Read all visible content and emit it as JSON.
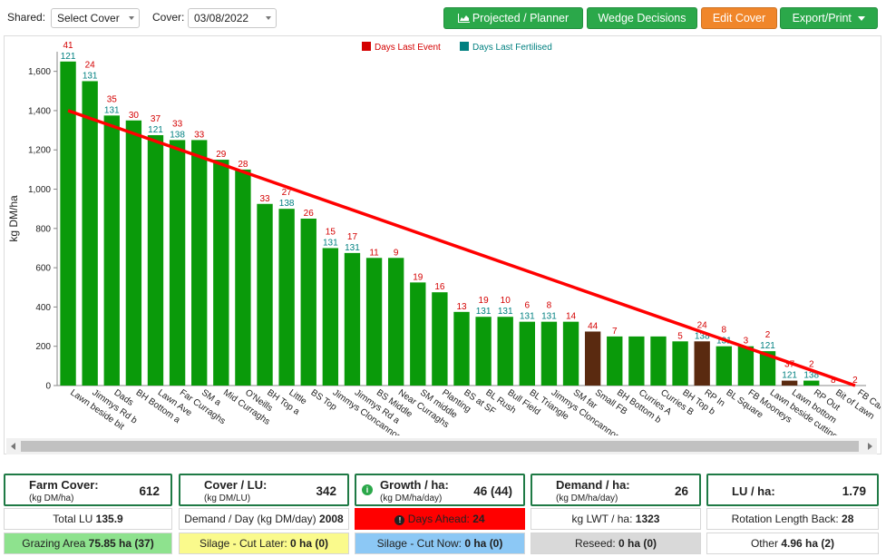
{
  "toolbar": {
    "shared_label": "Shared:",
    "shared_value": "Select Cover",
    "cover_label": "Cover:",
    "cover_date": "03/08/2022",
    "buttons": {
      "projected": "Projected / Planner",
      "wedge": "Wedge Decisions",
      "edit": "Edit Cover",
      "export": "Export/Print"
    },
    "colors": {
      "green": "#2ba84a",
      "orange": "#f0862a"
    }
  },
  "chart_data": {
    "type": "bar",
    "ylabel": "kg DM/ha",
    "ylim": [
      0,
      1700
    ],
    "yticks": [
      0,
      200,
      400,
      600,
      800,
      1000,
      1200,
      1400,
      1600
    ],
    "legend": [
      {
        "name": "Days Last Event",
        "color": "#d40000"
      },
      {
        "name": "Days Last Fertilised",
        "color": "#008080"
      }
    ],
    "legend_position": "top-center",
    "target_line": {
      "start": 1400,
      "end": 0,
      "color": "#ff0000"
    },
    "bar_colors": {
      "grazable": "#0a9a0a",
      "other": "#5a2a10"
    },
    "paddocks": [
      {
        "name": "Lawn beside bit",
        "cover": 1650,
        "event": "41",
        "fert": "121",
        "kind": "grazable"
      },
      {
        "name": "Jimmys Rd b",
        "cover": 1550,
        "event": "24",
        "fert": "131",
        "kind": "grazable"
      },
      {
        "name": "Dads",
        "cover": 1375,
        "event": "35",
        "fert": "131",
        "kind": "grazable"
      },
      {
        "name": "BH Bottom a",
        "cover": 1350,
        "event": "30",
        "fert": "",
        "kind": "grazable"
      },
      {
        "name": "Lawn Ave",
        "cover": 1275,
        "event": "37",
        "fert": "121",
        "kind": "grazable"
      },
      {
        "name": "Far Curraghs",
        "cover": 1250,
        "event": "33",
        "fert": "138",
        "kind": "grazable"
      },
      {
        "name": "SM a",
        "cover": 1250,
        "event": "33",
        "fert": "",
        "kind": "grazable"
      },
      {
        "name": "Mid Curraghs",
        "cover": 1150,
        "event": "29",
        "fert": "",
        "kind": "grazable"
      },
      {
        "name": "O'Neills",
        "cover": 1100,
        "event": "28",
        "fert": "",
        "kind": "grazable"
      },
      {
        "name": "BH Top a",
        "cover": 925,
        "event": "33",
        "fert": "",
        "kind": "grazable"
      },
      {
        "name": "Little",
        "cover": 900,
        "event": "27",
        "fert": "138",
        "kind": "grazable"
      },
      {
        "name": "BS Top",
        "cover": 850,
        "event": "26",
        "fert": "",
        "kind": "grazable"
      },
      {
        "name": "Jimmys Cloncannon",
        "cover": 700,
        "event": "15",
        "fert": "131",
        "kind": "grazable"
      },
      {
        "name": "Jimmys Rd a",
        "cover": 675,
        "event": "17",
        "fert": "131",
        "kind": "grazable"
      },
      {
        "name": "BS Middle",
        "cover": 650,
        "event": "11",
        "fert": "",
        "kind": "grazable"
      },
      {
        "name": "Near Curraghs",
        "cover": 650,
        "event": "9",
        "fert": "",
        "kind": "grazable"
      },
      {
        "name": "SM middle",
        "cover": 525,
        "event": "19",
        "fert": "",
        "kind": "grazable"
      },
      {
        "name": "Planting",
        "cover": 475,
        "event": "16",
        "fert": "",
        "kind": "grazable"
      },
      {
        "name": "BS at SF",
        "cover": 375,
        "event": "13",
        "fert": "",
        "kind": "grazable"
      },
      {
        "name": "BL Rush",
        "cover": 350,
        "event": "19",
        "fert": "131",
        "kind": "grazable"
      },
      {
        "name": "Bull Field",
        "cover": 350,
        "event": "10",
        "fert": "131",
        "kind": "grazable"
      },
      {
        "name": "BL Triangle",
        "cover": 325,
        "event": "6",
        "fert": "131",
        "kind": "grazable"
      },
      {
        "name": "Jimmys Cloncannon",
        "cover": 325,
        "event": "8",
        "fert": "131",
        "kind": "grazable"
      },
      {
        "name": "SM far",
        "cover": 325,
        "event": "14",
        "fert": "",
        "kind": "grazable"
      },
      {
        "name": "Small FB",
        "cover": 275,
        "event": "44",
        "fert": "",
        "kind": "other"
      },
      {
        "name": "BH Bottom b",
        "cover": 250,
        "event": "7",
        "fert": "",
        "kind": "grazable"
      },
      {
        "name": "Curries A",
        "cover": 250,
        "event": "",
        "fert": "",
        "kind": "grazable"
      },
      {
        "name": "Curries B",
        "cover": 250,
        "event": "",
        "fert": "",
        "kind": "grazable"
      },
      {
        "name": "BH Top b",
        "cover": 225,
        "event": "5",
        "fert": "",
        "kind": "grazable"
      },
      {
        "name": "RP In",
        "cover": 225,
        "event": "24",
        "fert": "138",
        "kind": "other"
      },
      {
        "name": "BL Square",
        "cover": 200,
        "event": "8",
        "fert": "131",
        "kind": "grazable"
      },
      {
        "name": "FB Mooneys",
        "cover": 200,
        "event": "3",
        "fert": "",
        "kind": "grazable"
      },
      {
        "name": "Lawn beside cutting",
        "cover": 175,
        "event": "2",
        "fert": "121",
        "kind": "grazable"
      },
      {
        "name": "Lawn bottom",
        "cover": 25,
        "event": "37",
        "fert": "121",
        "kind": "other"
      },
      {
        "name": "RP Out",
        "cover": 25,
        "event": "2",
        "fert": "138",
        "kind": "grazable"
      },
      {
        "name": "Bit of Lawn",
        "cover": 0,
        "event": "8",
        "fert": "",
        "kind": "grazable"
      },
      {
        "name": "FB Carolls",
        "cover": 0,
        "event": "2",
        "fert": "",
        "kind": "grazable"
      }
    ]
  },
  "kpis": {
    "farm_cover": {
      "title": "Farm Cover:",
      "unit": "(kg DM/ha)",
      "value": "612"
    },
    "cover_lu": {
      "title": "Cover / LU:",
      "unit": "(kg DM/LU)",
      "value": "342"
    },
    "growth": {
      "title": "Growth / ha:",
      "unit": "(kg DM/ha/day)",
      "value": "46 (44)"
    },
    "demand": {
      "title": "Demand / ha:",
      "unit": "(kg DM/ha/day)",
      "value": "26"
    },
    "lu": {
      "title": "LU / ha:",
      "value": "1.79"
    }
  },
  "info_row": {
    "total_lu_label": "Total LU",
    "total_lu_value": "135.9",
    "demand_day_label": "Demand / Day (kg DM/day)",
    "demand_day_value": "2008",
    "days_ahead_label": "Days Ahead:",
    "days_ahead_value": "24",
    "lwt_label": "kg LWT / ha:",
    "lwt_value": "1323",
    "rotation_label": "Rotation Length Back:",
    "rotation_value": "28"
  },
  "area_row": {
    "grazing_label": "Grazing Area",
    "grazing_value": "75.85 ha (37)",
    "silage_later_label": "Silage - Cut Later:",
    "silage_later_value": "0 ha (0)",
    "silage_now_label": "Silage - Cut Now:",
    "silage_now_value": "0 ha (0)",
    "reseed_label": "Reseed:",
    "reseed_value": "0 ha (0)",
    "other_label": "Other",
    "other_value": "4.96 ha (2)",
    "colors": {
      "grazing": "#8ee28e",
      "silage_later": "#fafa8c",
      "silage_now": "#8cc8f5",
      "reseed": "#d9d9d9",
      "days_ahead": "#ff0000"
    }
  }
}
